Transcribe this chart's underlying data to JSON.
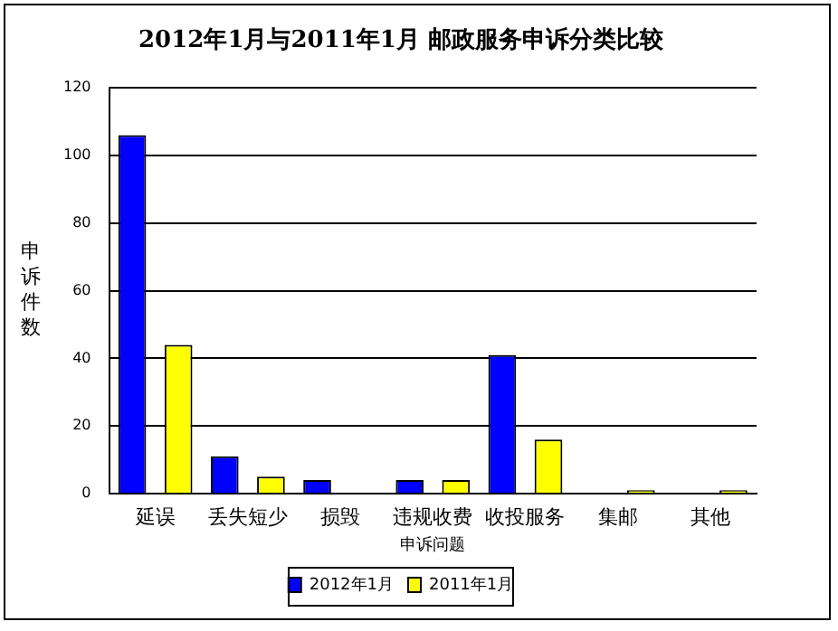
{
  "chart_data": {
    "type": "bar",
    "title": "2012年1月与2011年1月 邮政服务申诉分类比较",
    "xlabel": "申诉问题",
    "ylabel": "申诉件数",
    "categories": [
      "延误",
      "丢失短少",
      "损毁",
      "违规收费",
      "收投服务",
      "集邮",
      "其他"
    ],
    "series": [
      {
        "name": "2012年1月",
        "color": "#0000ff",
        "values": [
          106,
          11,
          4,
          4,
          41,
          0,
          0
        ]
      },
      {
        "name": "2011年1月",
        "color": "#ffff00",
        "values": [
          44,
          5,
          0,
          4,
          16,
          1,
          1
        ]
      }
    ],
    "ylim": [
      0,
      120
    ],
    "yticks": [
      0,
      20,
      40,
      60,
      80,
      100,
      120
    ],
    "grid": "y",
    "legend": "bottom"
  }
}
